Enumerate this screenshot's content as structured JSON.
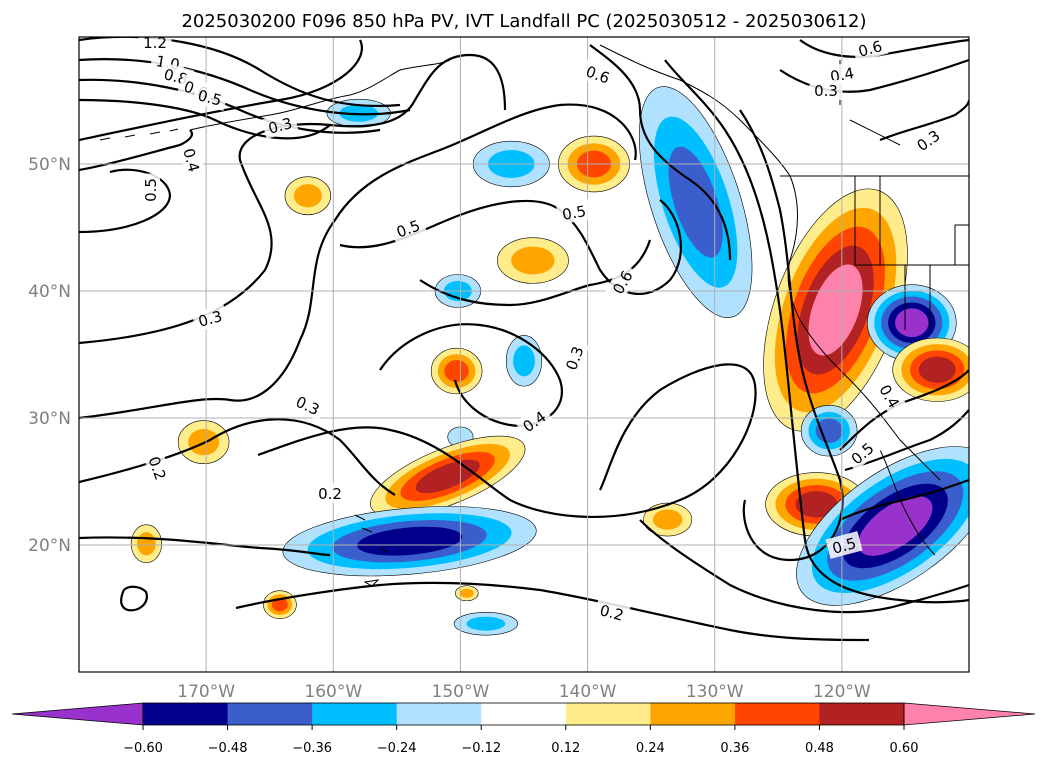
{
  "title": "2025030200 F096 850 hPa PV, IVT Landfall PC (2025030512 - 2025030612)",
  "map": {
    "lon_range": [
      -180,
      -110
    ],
    "lat_range": [
      10,
      60
    ],
    "lon_ticks": [
      {
        "value": -170,
        "label": "170°W"
      },
      {
        "value": -160,
        "label": "160°W"
      },
      {
        "value": -150,
        "label": "150°W"
      },
      {
        "value": -140,
        "label": "140°W"
      },
      {
        "value": -130,
        "label": "130°W"
      },
      {
        "value": -120,
        "label": "120°W"
      }
    ],
    "lat_ticks": [
      {
        "value": 50,
        "label": "50°N"
      },
      {
        "value": 40,
        "label": "40°N"
      },
      {
        "value": 30,
        "label": "30°N"
      },
      {
        "value": 20,
        "label": "20°N"
      }
    ],
    "gridlines": true,
    "colors": {
      "land_outline": "#000000",
      "grid": "#b0b0b0",
      "contour": "#000000"
    }
  },
  "colorbar": {
    "extend": "both",
    "ticks": [
      "−0.60",
      "−0.48",
      "−0.36",
      "−0.24",
      "−0.12",
      "0.12",
      "0.24",
      "0.36",
      "0.48",
      "0.60"
    ],
    "colors": [
      "#9932cc",
      "#00008b",
      "#3a5fcd",
      "#00bfff",
      "#b0e2ff",
      "#ffffff",
      "#ffec8b",
      "#ffa500",
      "#ff4500",
      "#b22222",
      "#ff82ab"
    ]
  },
  "contour_labels": [
    "1.2",
    "1.0",
    "0.8",
    "0.6",
    "0.5",
    "0.3",
    "0.4",
    "0.5",
    "0.3",
    "0.2",
    "0.3",
    "0.2",
    "0.5",
    "0.6",
    "0.6",
    "0.3",
    "0.4",
    "0.5",
    "0.4",
    "0.3",
    "0.5",
    "0.3",
    "0.4",
    "0.5",
    "0.6",
    "0.2"
  ],
  "anomaly_blobs": [
    {
      "id": "west-pac-pos-a",
      "lon": -170.2,
      "lat": 28.1,
      "rlon": 2.0,
      "rlat": 1.7,
      "levels": [
        0.12,
        0.24
      ]
    },
    {
      "id": "west-pac-pos-b",
      "lon": -174.7,
      "lat": 20.1,
      "rlon": 1.2,
      "rlat": 1.5,
      "levels": [
        0.12,
        0.24
      ]
    },
    {
      "id": "west-pac-pos-c",
      "lon": -164.2,
      "lat": 15.3,
      "rlon": 1.3,
      "rlat": 1.1,
      "levels": [
        0.12,
        0.24,
        0.36
      ]
    },
    {
      "id": "north-pos-a",
      "lon": -162.0,
      "lat": 47.5,
      "rlon": 1.8,
      "rlat": 1.5,
      "levels": [
        0.12,
        0.24
      ]
    },
    {
      "id": "north-neg-a",
      "lon": -158.0,
      "lat": 54.0,
      "rlon": 2.5,
      "rlat": 1.1,
      "levels": [
        -0.12,
        -0.24
      ]
    },
    {
      "id": "north-neg-b",
      "lon": -146.0,
      "lat": 50.0,
      "rlon": 3.0,
      "rlat": 1.8,
      "levels": [
        -0.12,
        -0.24
      ]
    },
    {
      "id": "north-pos-b",
      "lon": -139.5,
      "lat": 50.0,
      "rlon": 2.8,
      "rlat": 2.2,
      "levels": [
        0.12,
        0.24,
        0.36
      ]
    },
    {
      "id": "mid-pos-a",
      "lon": -144.3,
      "lat": 42.4,
      "rlon": 2.8,
      "rlat": 1.8,
      "levels": [
        0.12,
        0.24
      ]
    },
    {
      "id": "mid-neg-a",
      "lon": -150.2,
      "lat": 40.0,
      "rlon": 1.8,
      "rlat": 1.3,
      "levels": [
        -0.12,
        -0.24
      ]
    },
    {
      "id": "mid-pos-b",
      "lon": -150.3,
      "lat": 33.7,
      "rlon": 2.0,
      "rlat": 1.8,
      "levels": [
        0.12,
        0.24,
        0.36
      ]
    },
    {
      "id": "mid-neg-b",
      "lon": -145.0,
      "lat": 34.5,
      "rlon": 1.4,
      "rlat": 2.0,
      "levels": [
        -0.12,
        -0.24
      ]
    },
    {
      "id": "mid-neg-c",
      "lon": -150.0,
      "lat": 28.5,
      "rlon": 1.0,
      "rlat": 0.8,
      "levels": [
        -0.12
      ]
    },
    {
      "id": "band-pos",
      "lon": -151.0,
      "lat": 25.4,
      "rlon": 6.5,
      "rlat": 2.2,
      "rot": -22,
      "levels": [
        0.12,
        0.24,
        0.36,
        0.48
      ]
    },
    {
      "id": "band-neg",
      "lon": -154.0,
      "lat": 20.3,
      "rlon": 10.0,
      "rlat": 2.6,
      "rot": -5,
      "levels": [
        -0.12,
        -0.24,
        -0.36,
        -0.48
      ]
    },
    {
      "id": "south-neg",
      "lon": -148.0,
      "lat": 13.8,
      "rlon": 2.5,
      "rlat": 0.9,
      "levels": [
        -0.12,
        -0.24
      ]
    },
    {
      "id": "south-pos",
      "lon": -149.5,
      "lat": 16.2,
      "rlon": 0.9,
      "rlat": 0.6,
      "levels": [
        0.12,
        0.24
      ]
    },
    {
      "id": "sub-pos",
      "lon": -133.7,
      "lat": 22.0,
      "rlon": 1.9,
      "rlat": 1.3,
      "levels": [
        0.12,
        0.24
      ]
    },
    {
      "id": "coast-neg",
      "lon": -131.5,
      "lat": 47.0,
      "rlon": 3.5,
      "rlat": 9.5,
      "rot": -18,
      "levels": [
        -0.12,
        -0.24,
        -0.36
      ]
    },
    {
      "id": "coast-pos",
      "lon": -120.5,
      "lat": 38.5,
      "rlon": 4.8,
      "rlat": 10.0,
      "rot": 20,
      "levels": [
        0.12,
        0.24,
        0.36,
        0.48,
        0.6
      ]
    },
    {
      "id": "inland-neg",
      "lon": -114.5,
      "lat": 37.5,
      "rlon": 3.5,
      "rlat": 3.0,
      "levels": [
        -0.12,
        -0.24,
        -0.36,
        -0.48,
        -0.6
      ]
    },
    {
      "id": "inland-pos",
      "lon": -112.5,
      "lat": 33.8,
      "rlon": 3.5,
      "rlat": 2.5,
      "levels": [
        0.12,
        0.24,
        0.36,
        0.48
      ]
    },
    {
      "id": "sw-neg-small",
      "lon": -121.0,
      "lat": 29.0,
      "rlon": 2.2,
      "rlat": 2.0,
      "levels": [
        -0.12,
        -0.24,
        -0.36
      ]
    },
    {
      "id": "sw-pos",
      "lon": -122.0,
      "lat": 23.2,
      "rlon": 4.0,
      "rlat": 2.5,
      "levels": [
        0.12,
        0.24,
        0.36,
        0.48
      ]
    },
    {
      "id": "se-neg",
      "lon": -115.8,
      "lat": 21.5,
      "rlon": 9.0,
      "rlat": 4.3,
      "rot": -35,
      "levels": [
        -0.12,
        -0.24,
        -0.36,
        -0.48,
        -0.6
      ]
    }
  ]
}
